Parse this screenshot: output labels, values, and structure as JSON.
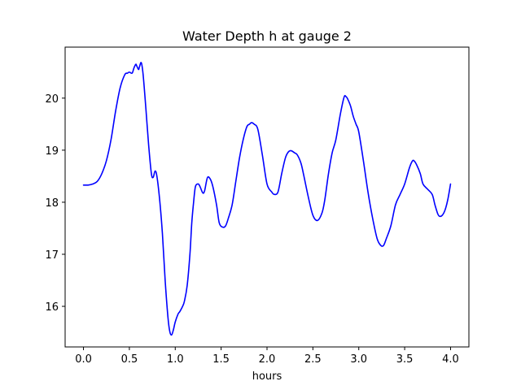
{
  "chart_data": {
    "type": "line",
    "title": "Water Depth h at gauge 2",
    "xlabel": "hours",
    "ylabel": "",
    "xlim": [
      -0.2,
      4.2
    ],
    "ylim": [
      15.22,
      20.98
    ],
    "xticks": [
      0.0,
      0.5,
      1.0,
      1.5,
      2.0,
      2.5,
      3.0,
      3.5,
      4.0
    ],
    "xtick_labels": [
      "0.0",
      "0.5",
      "1.0",
      "1.5",
      "2.0",
      "2.5",
      "3.0",
      "3.5",
      "4.0"
    ],
    "yticks": [
      16,
      17,
      18,
      19,
      20
    ],
    "ytick_labels": [
      "16",
      "17",
      "18",
      "19",
      "20"
    ],
    "grid": false,
    "series": [
      {
        "color": "#0000ff",
        "x": [
          0.0,
          0.05,
          0.1,
          0.15,
          0.2,
          0.25,
          0.3,
          0.35,
          0.4,
          0.45,
          0.48,
          0.5,
          0.53,
          0.55,
          0.57,
          0.58,
          0.6,
          0.61,
          0.63,
          0.65,
          0.68,
          0.71,
          0.74,
          0.76,
          0.78,
          0.8,
          0.83,
          0.86,
          0.89,
          0.92,
          0.94,
          0.96,
          0.98,
          1.0,
          1.03,
          1.05,
          1.08,
          1.1,
          1.13,
          1.16,
          1.18,
          1.2,
          1.22,
          1.25,
          1.27,
          1.3,
          1.32,
          1.35,
          1.38,
          1.41,
          1.45,
          1.48,
          1.52,
          1.55,
          1.58,
          1.62,
          1.66,
          1.7,
          1.74,
          1.78,
          1.81,
          1.83,
          1.86,
          1.9,
          1.95,
          2.0,
          2.05,
          2.08,
          2.12,
          2.16,
          2.2,
          2.23,
          2.26,
          2.3,
          2.33,
          2.37,
          2.4,
          2.45,
          2.5,
          2.55,
          2.6,
          2.63,
          2.67,
          2.71,
          2.75,
          2.8,
          2.84,
          2.86,
          2.88,
          2.91,
          2.94,
          2.97,
          3.0,
          3.05,
          3.1,
          3.15,
          3.2,
          3.24,
          3.27,
          3.3,
          3.35,
          3.4,
          3.45,
          3.5,
          3.55,
          3.58,
          3.6,
          3.63,
          3.67,
          3.7,
          3.75,
          3.8,
          3.83,
          3.86,
          3.88,
          3.91,
          3.94,
          3.97,
          4.0
        ],
        "y": [
          18.33,
          18.33,
          18.35,
          18.4,
          18.55,
          18.8,
          19.2,
          19.75,
          20.2,
          20.45,
          20.48,
          20.5,
          20.48,
          20.58,
          20.65,
          20.62,
          20.55,
          20.6,
          20.68,
          20.45,
          19.8,
          19.1,
          18.55,
          18.48,
          18.6,
          18.5,
          18.05,
          17.4,
          16.5,
          15.8,
          15.52,
          15.45,
          15.55,
          15.7,
          15.85,
          15.9,
          16.0,
          16.1,
          16.4,
          17.0,
          17.6,
          18.0,
          18.3,
          18.35,
          18.3,
          18.18,
          18.22,
          18.47,
          18.45,
          18.3,
          17.95,
          17.6,
          17.52,
          17.55,
          17.7,
          17.95,
          18.4,
          18.85,
          19.2,
          19.45,
          19.5,
          19.53,
          19.5,
          19.4,
          18.9,
          18.35,
          18.2,
          18.15,
          18.2,
          18.55,
          18.85,
          18.96,
          18.99,
          18.95,
          18.91,
          18.75,
          18.52,
          18.1,
          17.75,
          17.65,
          17.8,
          18.05,
          18.55,
          18.95,
          19.2,
          19.7,
          20.02,
          20.03,
          19.98,
          19.85,
          19.65,
          19.5,
          19.35,
          18.8,
          18.2,
          17.7,
          17.3,
          17.17,
          17.17,
          17.3,
          17.55,
          17.95,
          18.15,
          18.35,
          18.65,
          18.78,
          18.8,
          18.72,
          18.55,
          18.35,
          18.25,
          18.15,
          17.95,
          17.78,
          17.73,
          17.75,
          17.85,
          18.05,
          18.35
        ]
      }
    ]
  }
}
